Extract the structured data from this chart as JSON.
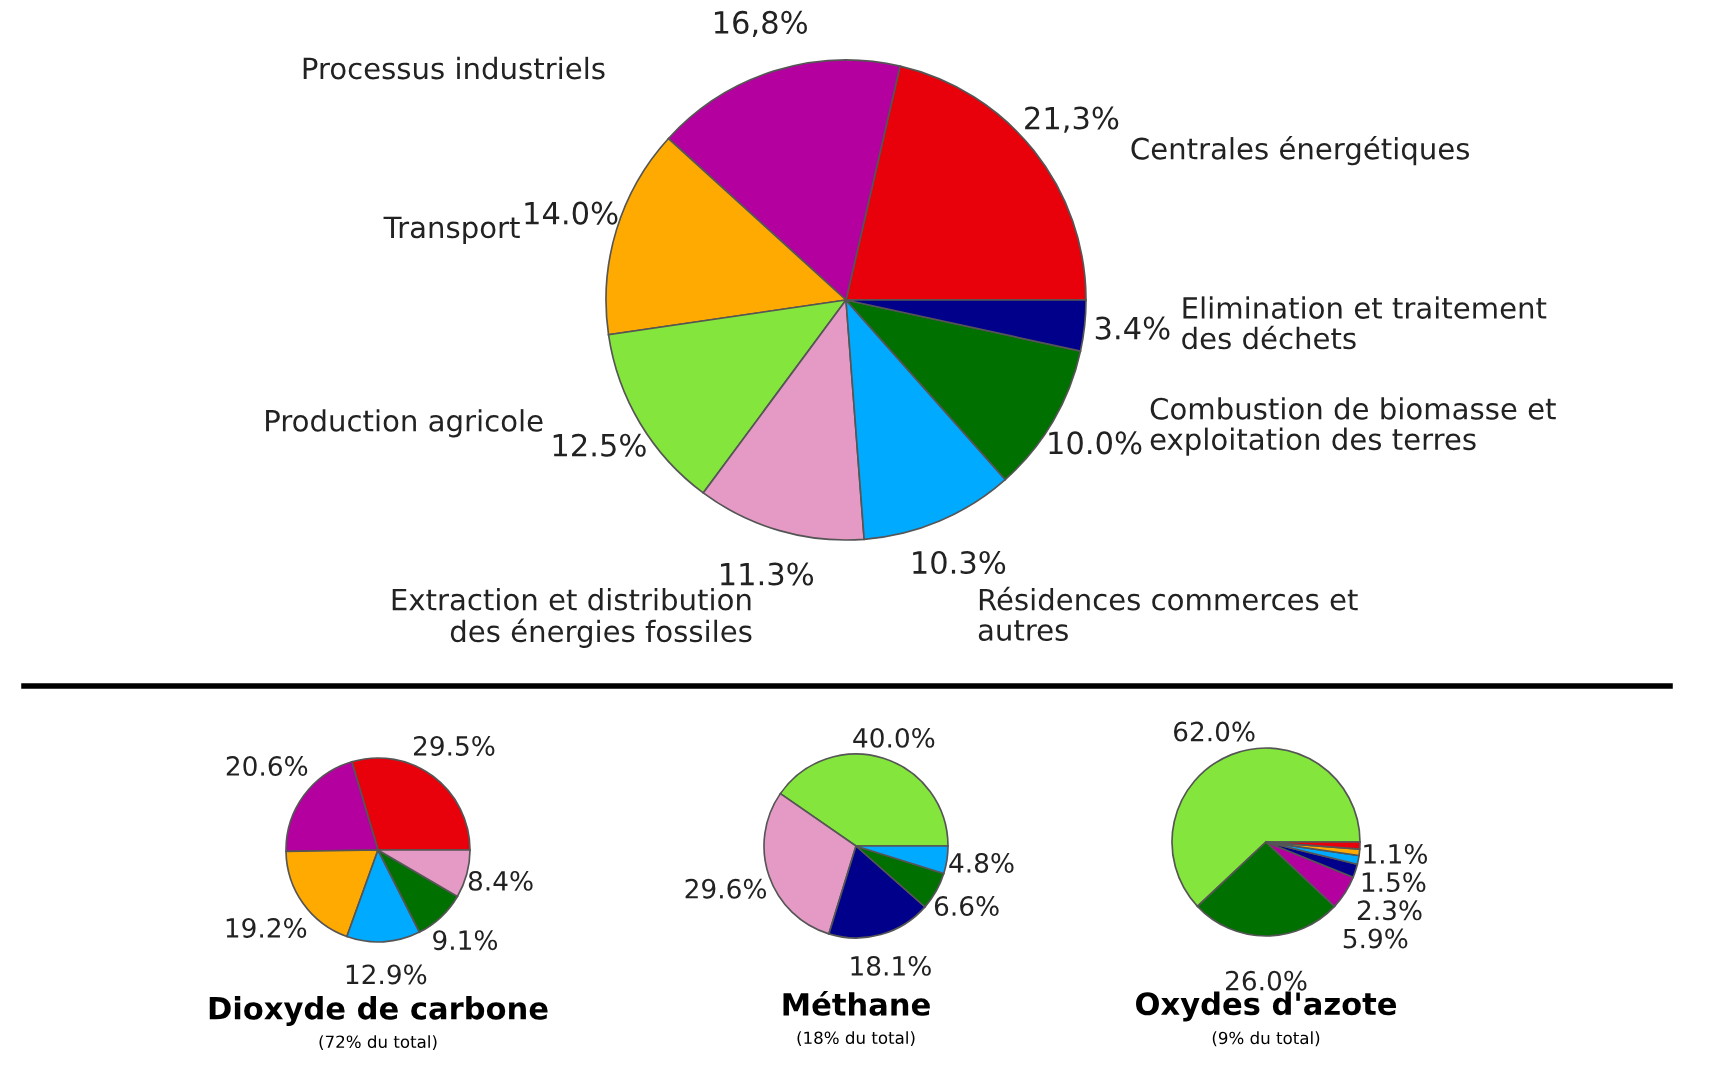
{
  "chart_data": [
    {
      "type": "pie",
      "categories": [
        "Centrales énergétiques",
        "Processus industriels",
        "Transport",
        "Production agricole",
        "Extraction et distribution des énergies fossiles",
        "Résidences commerces et autres",
        "Combustion de biomasse et exploitation des terres",
        "Elimination et traitement des déchets"
      ],
      "values": [
        21.3,
        16.8,
        14.0,
        12.5,
        11.3,
        10.3,
        10.0,
        3.4
      ],
      "colors": [
        "#e8000b",
        "#b4009e",
        "#ffaa00",
        "#84e63c",
        "#e49ac4",
        "#00aaff",
        "#007000",
        "#00008b"
      ],
      "value_labels": [
        "21,3%",
        "16,8%",
        "14.0%",
        "12.5%",
        "11.3%",
        "10.3%",
        "10.0%",
        "3.4%"
      ]
    },
    {
      "type": "pie",
      "title": "Dioxyde de carbone",
      "subtitle": "(72% du total)",
      "categories": [
        null,
        null,
        null,
        null,
        null,
        null
      ],
      "values": [
        29.5,
        20.6,
        19.2,
        12.9,
        9.1,
        8.4
      ],
      "colors": [
        "#e8000b",
        "#b4009e",
        "#ffaa00",
        "#00aaff",
        "#007000",
        "#e49ac4"
      ],
      "value_labels": [
        "29.5%",
        "20.6%",
        "19.2%",
        "12.9%",
        "9.1%",
        "8.4%"
      ]
    },
    {
      "type": "pie",
      "title": "Méthane",
      "subtitle": "(18% du total)",
      "categories": [
        null,
        null,
        null,
        null,
        null
      ],
      "values": [
        40.0,
        29.6,
        18.1,
        6.6,
        4.8
      ],
      "colors": [
        "#84e63c",
        "#e49ac4",
        "#00008b",
        "#007000",
        "#00aaff"
      ],
      "value_labels": [
        "40.0%",
        "29.6%",
        "18.1%",
        "6.6%",
        "4.8%"
      ]
    },
    {
      "type": "pie",
      "title": "Oxydes d'azote",
      "subtitle": "(9% du total)",
      "categories": [
        null,
        null,
        null,
        null,
        null,
        null,
        null
      ],
      "values": [
        62.0,
        26.0,
        5.9,
        2.3,
        1.5,
        1.1,
        1.2
      ],
      "colors": [
        "#84e63c",
        "#007000",
        "#b4009e",
        "#00008b",
        "#00aaff",
        "#ffaa00",
        "#e8000b"
      ],
      "value_labels": [
        "62.0%",
        "26.0%",
        "5.9%",
        "2.3%",
        "1.5%",
        "1.1%",
        null
      ]
    }
  ]
}
